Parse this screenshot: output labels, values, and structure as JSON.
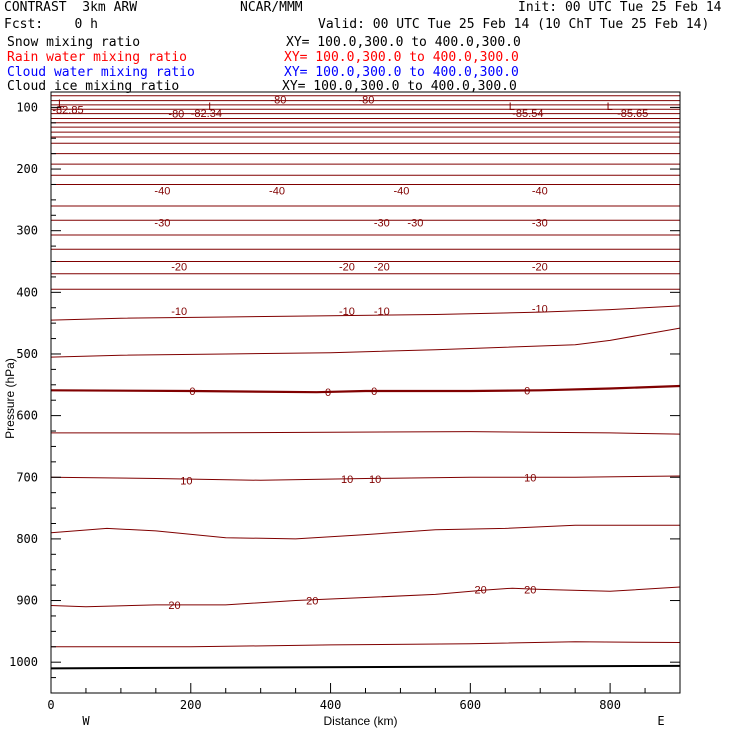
{
  "header": {
    "model": "CONTRAST  3km ARW",
    "center": "NCAR/MMM",
    "init": "Init: 00 UTC Tue 25 Feb 14",
    "fcst": "Fcst:    0 h",
    "valid": "Valid: 00 UTC Tue 25 Feb 14 (10 ChT Tue 25 Feb 14)"
  },
  "fields": [
    {
      "name": "Snow mixing ratio",
      "xy": "XY= 100.0,300.0 to 400.0,300.0",
      "color": "#000000"
    },
    {
      "name": "Rain water mixing ratio",
      "xy": "XY= 100.0,300.0 to 400.0,300.0",
      "color": "#ff0000"
    },
    {
      "name": "Cloud water mixing ratio",
      "xy": "XY= 100.0,300.0 to 400.0,300.0",
      "color": "#0000ff"
    },
    {
      "name": "Cloud ice mixing ratio",
      "xy": "XY= 100.0,300.0 to 400.0,300.0",
      "color": "#000000"
    }
  ],
  "chart_data": {
    "type": "line",
    "xlabel": "Distance (km)",
    "ylabel": "Pressure (hPa)",
    "xlim": [
      0,
      900
    ],
    "ylim": [
      1050,
      75
    ],
    "x_ticks": [
      "0",
      "200",
      "400",
      "600",
      "800"
    ],
    "y_ticks": [
      "100",
      "200",
      "300",
      "400",
      "500",
      "600",
      "700",
      "800",
      "900",
      "1000"
    ],
    "x_end_labels": {
      "left": "W",
      "right": "E"
    },
    "contour_color": "#800000",
    "contour_lines": [
      {
        "x": [
          0,
          900
        ],
        "p": [
          81,
          81
        ]
      },
      {
        "x": [
          0,
          900
        ],
        "p": [
          89,
          89
        ]
      },
      {
        "x": [
          0,
          900
        ],
        "p": [
          96,
          96
        ]
      },
      {
        "x": [
          0,
          900
        ],
        "p": [
          103,
          103
        ]
      },
      {
        "x": [
          0,
          900
        ],
        "p": [
          110,
          110
        ]
      },
      {
        "x": [
          0,
          900
        ],
        "p": [
          118,
          118
        ]
      },
      {
        "x": [
          0,
          900
        ],
        "p": [
          125,
          125
        ]
      },
      {
        "x": [
          0,
          900
        ],
        "p": [
          132,
          132
        ]
      },
      {
        "x": [
          0,
          900
        ],
        "p": [
          140,
          140
        ]
      },
      {
        "x": [
          0,
          900
        ],
        "p": [
          148,
          148
        ]
      },
      {
        "x": [
          0,
          900
        ],
        "p": [
          158,
          158
        ]
      },
      {
        "x": [
          0,
          900
        ],
        "p": [
          175,
          175
        ]
      },
      {
        "x": [
          0,
          900
        ],
        "p": [
          192,
          192
        ]
      },
      {
        "x": [
          0,
          900
        ],
        "p": [
          210,
          210
        ]
      },
      {
        "x": [
          0,
          900
        ],
        "p": [
          225,
          225
        ]
      },
      {
        "x": [
          0,
          900
        ],
        "p": [
          260,
          260
        ]
      },
      {
        "x": [
          0,
          900
        ],
        "p": [
          283,
          283
        ]
      },
      {
        "x": [
          0,
          900
        ],
        "p": [
          307,
          307
        ]
      },
      {
        "x": [
          0,
          900
        ],
        "p": [
          330,
          330
        ]
      },
      {
        "x": [
          0,
          900
        ],
        "p": [
          350,
          350
        ]
      },
      {
        "x": [
          0,
          900
        ],
        "p": [
          370,
          370
        ]
      },
      {
        "x": [
          0,
          900
        ],
        "p": [
          395,
          395
        ]
      },
      {
        "x": [
          0,
          100,
          250,
          400,
          550,
          700,
          800,
          900
        ],
        "p": [
          445,
          442,
          440,
          438,
          436,
          432,
          428,
          422
        ]
      },
      {
        "x": [
          0,
          100,
          250,
          400,
          550,
          650,
          750,
          800,
          850,
          900
        ],
        "p": [
          505,
          502,
          500,
          498,
          493,
          489,
          485,
          478,
          468,
          458
        ]
      },
      {
        "x": [
          0,
          200,
          380,
          450,
          600,
          700,
          800,
          900
        ],
        "p": [
          559,
          560,
          562,
          560,
          560,
          559,
          556,
          552
        ]
      },
      {
        "x": [
          0,
          200,
          400,
          600,
          800,
          900
        ],
        "p": [
          628,
          628,
          627,
          626,
          628,
          630
        ]
      },
      {
        "x": [
          0,
          150,
          300,
          450,
          600,
          750,
          900
        ],
        "p": [
          700,
          702,
          705,
          702,
          700,
          700,
          698
        ]
      },
      {
        "x": [
          0,
          80,
          150,
          250,
          350,
          450,
          550,
          650,
          750,
          900
        ],
        "p": [
          790,
          783,
          787,
          798,
          800,
          793,
          785,
          783,
          778,
          778
        ]
      },
      {
        "x": [
          0,
          50,
          150,
          250,
          350,
          450,
          550,
          620,
          660,
          700,
          800,
          900
        ],
        "p": [
          908,
          910,
          907,
          907,
          900,
          895,
          890,
          883,
          880,
          882,
          885,
          878
        ]
      },
      {
        "x": [
          0,
          200,
          400,
          600,
          750,
          900
        ],
        "p": [
          975,
          975,
          972,
          970,
          967,
          968
        ]
      }
    ],
    "labels": [
      {
        "text": "-82.85",
        "x": 2,
        "p": 103
      },
      {
        "text": "-82.34",
        "x": 200,
        "p": 109
      },
      {
        "text": "-85.54",
        "x": 660,
        "p": 109
      },
      {
        "text": "-85.65",
        "x": 810,
        "p": 109
      },
      {
        "text": "-80",
        "x": 314,
        "p": 87
      },
      {
        "text": "-80",
        "x": 440,
        "p": 87
      },
      {
        "text": "-80",
        "x": 168,
        "p": 110
      },
      {
        "text": "-40",
        "x": 148,
        "p": 235
      },
      {
        "text": "-40",
        "x": 312,
        "p": 235
      },
      {
        "text": "-40",
        "x": 490,
        "p": 235
      },
      {
        "text": "-40",
        "x": 688,
        "p": 235
      },
      {
        "text": "-30",
        "x": 148,
        "p": 287
      },
      {
        "text": "-30",
        "x": 462,
        "p": 287
      },
      {
        "text": "-30",
        "x": 510,
        "p": 287
      },
      {
        "text": "-30",
        "x": 688,
        "p": 287
      },
      {
        "text": "-20",
        "x": 172,
        "p": 358
      },
      {
        "text": "-20",
        "x": 412,
        "p": 358
      },
      {
        "text": "-20",
        "x": 462,
        "p": 358
      },
      {
        "text": "-20",
        "x": 688,
        "p": 358
      },
      {
        "text": "-10",
        "x": 172,
        "p": 430
      },
      {
        "text": "-10",
        "x": 412,
        "p": 430
      },
      {
        "text": "-10",
        "x": 462,
        "p": 430
      },
      {
        "text": "-10",
        "x": 688,
        "p": 426
      },
      {
        "text": "0",
        "x": 198,
        "p": 560
      },
      {
        "text": "0",
        "x": 392,
        "p": 562
      },
      {
        "text": "0",
        "x": 458,
        "p": 560
      },
      {
        "text": "0",
        "x": 677,
        "p": 559
      },
      {
        "text": "10",
        "x": 185,
        "p": 705
      },
      {
        "text": "10",
        "x": 415,
        "p": 703
      },
      {
        "text": "10",
        "x": 455,
        "p": 703
      },
      {
        "text": "10",
        "x": 677,
        "p": 700
      },
      {
        "text": "20",
        "x": 168,
        "p": 907
      },
      {
        "text": "20",
        "x": 365,
        "p": 900
      },
      {
        "text": "20",
        "x": 606,
        "p": 882
      },
      {
        "text": "20",
        "x": 677,
        "p": 882
      }
    ],
    "lows": [
      {
        "text": "L",
        "x": 10,
        "p": 93
      },
      {
        "text": "L",
        "x": 225,
        "p": 98
      },
      {
        "text": "L",
        "x": 655,
        "p": 98
      },
      {
        "text": "L",
        "x": 795,
        "p": 98
      }
    ]
  }
}
